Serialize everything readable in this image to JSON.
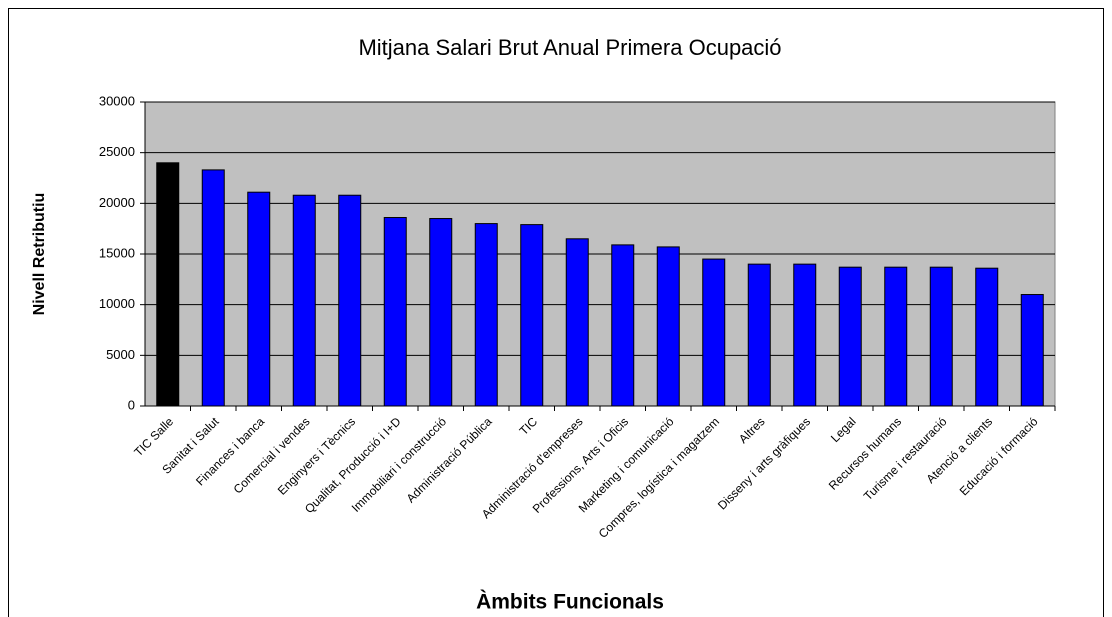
{
  "chart_data": {
    "type": "bar",
    "title": "Mitjana Salari Brut Anual Primera Ocupació",
    "x_label": "Àmbits Funcionals",
    "y_label": "Nivell Retributiu",
    "categories": [
      "TIC Salle",
      "Sanitat i Salut",
      "Finances i banca",
      "Comercial i vendes",
      "Enginyers i Tècnics",
      "Qualitat, Producció i I+D",
      "Immobiliari i construcció",
      "Administració Pública",
      "TIC",
      "Administració d'empreses",
      "Professions, Arts i Oficis",
      "Marketing i comunicació",
      "Compres, logística i magatzem",
      "Altres",
      "Disseny i arts gràfiques",
      "Legal",
      "Recursos humans",
      "Turisme i restauració",
      "Atenció a clients",
      "Educació i formació"
    ],
    "values": [
      24000,
      23300,
      21100,
      20800,
      20800,
      18600,
      18500,
      18000,
      17900,
      16500,
      15900,
      15700,
      14500,
      14000,
      14000,
      13700,
      13700,
      13700,
      13600,
      11000
    ],
    "colors": [
      "#000000",
      "#0000ff",
      "#0000ff",
      "#0000ff",
      "#0000ff",
      "#0000ff",
      "#0000ff",
      "#0000ff",
      "#0000ff",
      "#0000ff",
      "#0000ff",
      "#0000ff",
      "#0000ff",
      "#0000ff",
      "#0000ff",
      "#0000ff",
      "#0000ff",
      "#0000ff",
      "#0000ff",
      "#0000ff"
    ],
    "ylim": [
      0,
      30000
    ],
    "yticks": [
      0,
      5000,
      10000,
      15000,
      20000,
      25000,
      30000
    ],
    "grid": true,
    "plot_background": "#c0c0c0"
  }
}
